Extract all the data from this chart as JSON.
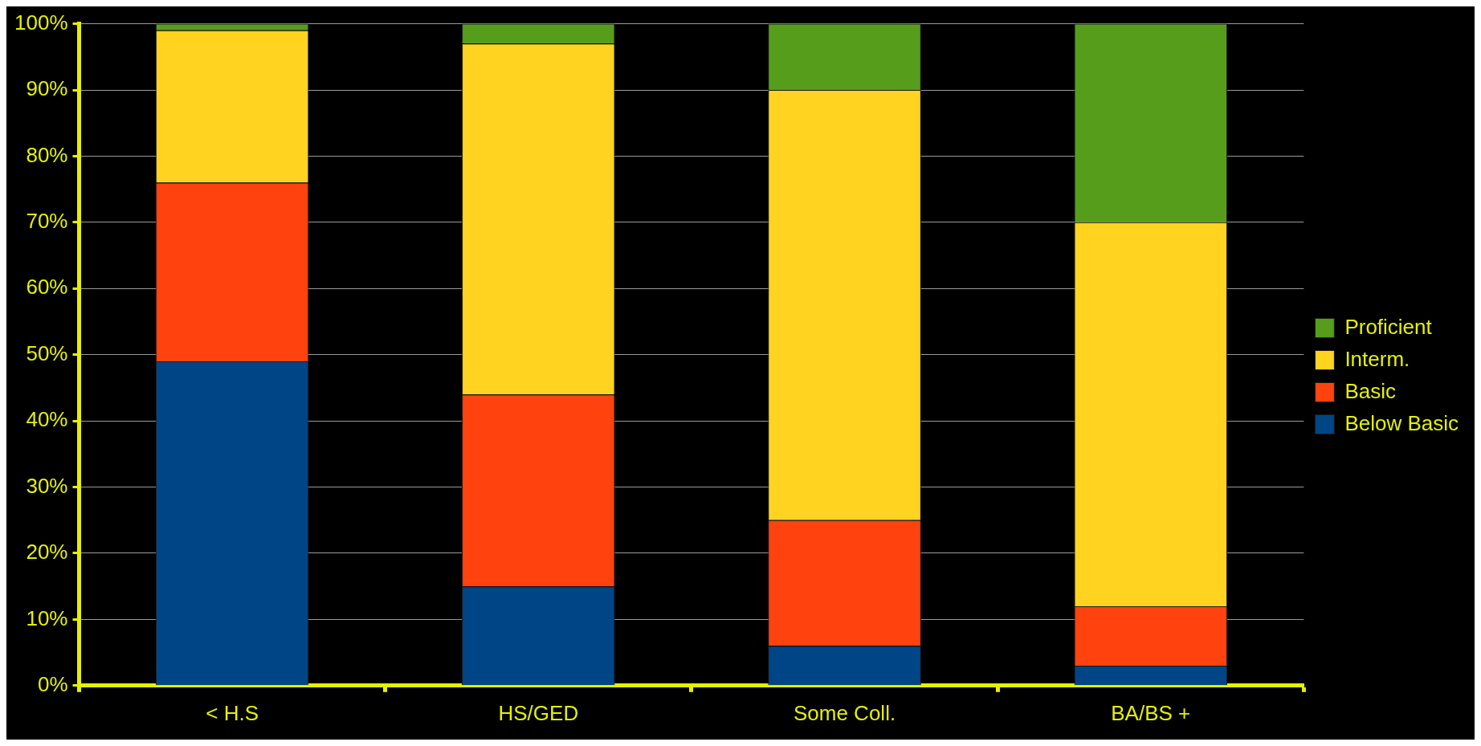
{
  "chart_data": {
    "type": "bar",
    "stacked": true,
    "categories": [
      "< H.S",
      "HS/GED",
      "Some Coll.",
      "BA/BS +"
    ],
    "series": [
      {
        "name": "Below Basic",
        "color": "#004586",
        "values": [
          49,
          15,
          6,
          3
        ]
      },
      {
        "name": "Basic",
        "color": "#ff420e",
        "values": [
          27,
          29,
          19,
          9
        ]
      },
      {
        "name": "Interm.",
        "color": "#ffd320",
        "values": [
          23,
          53,
          65,
          58
        ]
      },
      {
        "name": "Proficient",
        "color": "#579d1c",
        "values": [
          1,
          3,
          10,
          30
        ]
      }
    ],
    "ylim": [
      0,
      100
    ],
    "yticks": [
      {
        "value": 0,
        "label": "0%"
      },
      {
        "value": 10,
        "label": "10%"
      },
      {
        "value": 20,
        "label": "20%"
      },
      {
        "value": 30,
        "label": "30%"
      },
      {
        "value": 40,
        "label": "40%"
      },
      {
        "value": 50,
        "label": "50%"
      },
      {
        "value": 60,
        "label": "60%"
      },
      {
        "value": 70,
        "label": "70%"
      },
      {
        "value": 80,
        "label": "80%"
      },
      {
        "value": 90,
        "label": "90%"
      },
      {
        "value": 100,
        "label": "100%"
      }
    ],
    "grid": "y",
    "legend": "right"
  }
}
